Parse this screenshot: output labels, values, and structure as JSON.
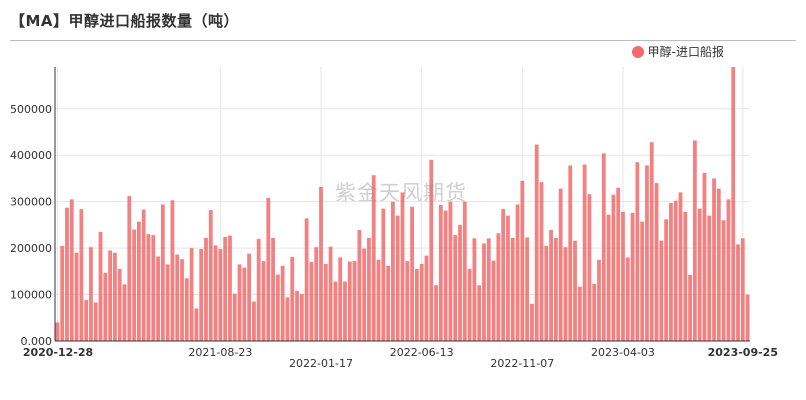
{
  "header": {
    "title": "【MA】甲醇进口船报数量（吨）"
  },
  "watermark": "紫金天风期货",
  "chart_data": {
    "type": "bar",
    "series": [
      {
        "name": "甲醇-进口船报",
        "color": "#f26b6b",
        "values": [
          40000,
          205000,
          287000,
          305000,
          190000,
          284000,
          88000,
          202000,
          83000,
          235000,
          147000,
          195000,
          190000,
          155000,
          122000,
          312000,
          240000,
          257000,
          283000,
          230000,
          228000,
          182000,
          294000,
          165000,
          303000,
          186000,
          176000,
          135000,
          200000,
          70000,
          198000,
          222000,
          282000,
          206000,
          198000,
          224000,
          227000,
          102000,
          165000,
          158000,
          188000,
          85000,
          220000,
          172000,
          308000,
          222000,
          143000,
          162000,
          94000,
          181000,
          108000,
          101000,
          264000,
          170000,
          202000,
          332000,
          166000,
          203000,
          128000,
          180000,
          128000,
          171000,
          172000,
          239000,
          199000,
          222000,
          357000,
          175000,
          285000,
          162000,
          300000,
          270000,
          320000,
          172000,
          289000,
          155000,
          166000,
          184000,
          390000,
          120000,
          293000,
          281000,
          300000,
          228000,
          250000,
          300000,
          155000,
          221000,
          120000,
          210000,
          221000,
          173000,
          232000,
          284000,
          270000,
          222000,
          294000,
          345000,
          223000,
          80000,
          423000,
          342000,
          205000,
          239000,
          222000,
          328000,
          202000,
          378000,
          216000,
          117000,
          380000,
          316000,
          123000,
          175000,
          404000,
          272000,
          315000,
          330000,
          278000,
          180000,
          276000,
          385000,
          257000,
          378000,
          428000,
          340000,
          216000,
          262000,
          297000,
          302000,
          320000,
          278000,
          142000,
          432000,
          285000,
          362000,
          270000,
          350000,
          328000,
          260000,
          305000,
          590000,
          208000,
          221000,
          100000
        ]
      }
    ],
    "x_ticks": [
      {
        "index": 0,
        "label": "2020-12-28",
        "row": 0,
        "bold": true
      },
      {
        "index": 34,
        "label": "2021-08-23",
        "row": 0,
        "bold": false
      },
      {
        "index": 55,
        "label": "2022-01-17",
        "row": 1,
        "bold": false
      },
      {
        "index": 76,
        "label": "2022-06-13",
        "row": 0,
        "bold": false
      },
      {
        "index": 97,
        "label": "2022-11-07",
        "row": 1,
        "bold": false
      },
      {
        "index": 118,
        "label": "2023-04-03",
        "row": 0,
        "bold": false
      },
      {
        "index": 143,
        "label": "2023-09-25",
        "row": 0,
        "bold": true
      }
    ],
    "y_ticks": [
      {
        "value": 0,
        "label": "0.000"
      },
      {
        "value": 100000,
        "label": "100000"
      },
      {
        "value": 200000,
        "label": "200000"
      },
      {
        "value": 300000,
        "label": "300000"
      },
      {
        "value": 400000,
        "label": "400000"
      },
      {
        "value": 500000,
        "label": "500000"
      }
    ],
    "ylim": [
      0,
      590000
    ],
    "grid": true,
    "legend_position": "top-right"
  }
}
